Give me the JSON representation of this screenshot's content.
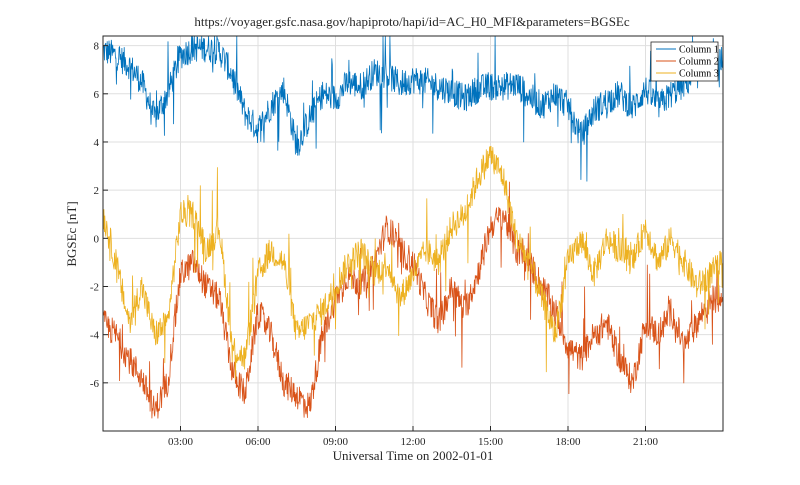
{
  "chart_data": {
    "type": "line",
    "title": "https://voyager.gsfc.nasa.gov/hapiproto/hapi/id=AC_H0_MFI&parameters=BGSEc",
    "xlabel": "Universal Time on 2002-01-01",
    "ylabel": "BGSEc [nT]",
    "xlim_hours": [
      0,
      24
    ],
    "ylim": [
      -8,
      8.4
    ],
    "x_ticks": [
      {
        "hour": 3,
        "label": "03:00"
      },
      {
        "hour": 6,
        "label": "06:00"
      },
      {
        "hour": 9,
        "label": "09:00"
      },
      {
        "hour": 12,
        "label": "12:00"
      },
      {
        "hour": 15,
        "label": "15:00"
      },
      {
        "hour": 18,
        "label": "18:00"
      },
      {
        "hour": 21,
        "label": "21:00"
      }
    ],
    "y_ticks": [
      {
        "value": 8,
        "label": "8"
      },
      {
        "value": 6,
        "label": "6"
      },
      {
        "value": 4,
        "label": "4"
      },
      {
        "value": 2,
        "label": "2"
      },
      {
        "value": 0,
        "label": "0"
      },
      {
        "value": -2,
        "label": "-2"
      },
      {
        "value": -4,
        "label": "-4"
      },
      {
        "value": -6,
        "label": "-6"
      }
    ],
    "grid": true,
    "legend_position": "top-right",
    "series": [
      {
        "name": "Column 1",
        "color": "#0072BD",
        "x_hours": [
          0,
          0.5,
          1,
          1.5,
          2,
          2.5,
          3,
          3.5,
          4,
          4.5,
          5,
          5.5,
          6,
          6.5,
          7,
          7.5,
          8,
          8.5,
          9,
          9.5,
          10,
          10.5,
          11,
          11.5,
          12,
          12.5,
          13,
          13.5,
          14,
          14.5,
          15,
          15.5,
          16,
          16.5,
          17,
          17.5,
          18,
          18.5,
          19,
          19.5,
          20,
          20.5,
          21,
          21.5,
          22,
          22.5,
          23,
          23.5,
          24
        ],
        "values": [
          7.8,
          7.6,
          7.2,
          6.5,
          5.0,
          6.0,
          7.6,
          7.9,
          7.9,
          7.8,
          6.8,
          5.2,
          4.5,
          5.5,
          6.2,
          3.8,
          5.0,
          6.0,
          5.8,
          6.5,
          6.3,
          6.9,
          6.8,
          6.4,
          6.6,
          6.5,
          6.3,
          6.1,
          5.8,
          6.2,
          6.3,
          6.3,
          6.4,
          5.9,
          5.5,
          6.0,
          5.5,
          4.2,
          5.3,
          5.7,
          6.0,
          5.4,
          6.2,
          5.5,
          6.0,
          6.4,
          6.8,
          7.2,
          7.5
        ]
      },
      {
        "name": "Column 2",
        "color": "#D95319",
        "x_hours": [
          0,
          0.5,
          1,
          1.5,
          2,
          2.5,
          3,
          3.5,
          4,
          4.5,
          5,
          5.5,
          6,
          6.5,
          7,
          7.5,
          8,
          8.5,
          9,
          9.5,
          10,
          10.5,
          11,
          11.5,
          12,
          12.5,
          13,
          13.5,
          14,
          14.5,
          15,
          15.5,
          16,
          16.5,
          17,
          17.5,
          18,
          18.5,
          19,
          19.5,
          20,
          20.5,
          21,
          21.5,
          22,
          22.5,
          23,
          23.5,
          24
        ],
        "values": [
          -3.5,
          -4.0,
          -5.0,
          -5.8,
          -7.2,
          -6.0,
          -1.5,
          -1.0,
          -2.0,
          -2.5,
          -5.5,
          -6.5,
          -3.0,
          -4.0,
          -6.0,
          -6.5,
          -7.0,
          -4.0,
          -2.5,
          -1.5,
          -2.0,
          -1.0,
          0.5,
          -0.5,
          -1.0,
          -2.5,
          -3.5,
          -2.0,
          -3.0,
          -1.5,
          0.5,
          1.0,
          -0.5,
          -1.0,
          -2.0,
          -3.0,
          -4.5,
          -5.0,
          -4.0,
          -3.5,
          -5.0,
          -6.0,
          -3.5,
          -4.0,
          -3.0,
          -4.5,
          -3.5,
          -2.5,
          -2.5
        ]
      },
      {
        "name": "Column 3",
        "color": "#EDB120",
        "x_hours": [
          0,
          0.5,
          1,
          1.5,
          2,
          2.5,
          3,
          3.5,
          4,
          4.5,
          5,
          5.5,
          6,
          6.5,
          7,
          7.5,
          8,
          8.5,
          9,
          9.5,
          10,
          10.5,
          11,
          11.5,
          12,
          12.5,
          13,
          13.5,
          14,
          14.5,
          15,
          15.5,
          16,
          16.5,
          17,
          17.5,
          18,
          18.5,
          19,
          19.5,
          20,
          20.5,
          21,
          21.5,
          22,
          22.5,
          23,
          23.5,
          24
        ],
        "values": [
          1.0,
          -1.0,
          -3.5,
          -2.0,
          -4.0,
          -3.5,
          1.0,
          1.0,
          -0.5,
          0.5,
          -4.5,
          -5.0,
          -1.5,
          -0.5,
          -1.0,
          -4.0,
          -3.5,
          -3.0,
          -2.0,
          -1.0,
          -0.5,
          -1.5,
          -1.0,
          -2.5,
          -1.5,
          -0.5,
          -1.0,
          0.5,
          1.0,
          2.5,
          3.5,
          2.5,
          0.0,
          -1.0,
          -2.5,
          -4.0,
          -1.0,
          0.0,
          -1.5,
          0.0,
          -0.5,
          -1.0,
          0.5,
          -1.0,
          0.0,
          -1.0,
          -2.0,
          -1.5,
          -1.0
        ]
      }
    ]
  }
}
